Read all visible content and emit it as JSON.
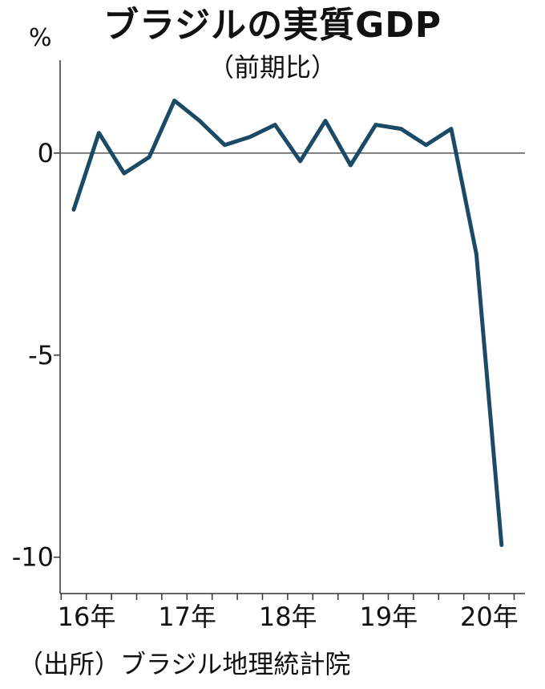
{
  "header": {
    "title": "ブラジルの実質GDP",
    "subtitle": "（前期比）",
    "unit": "%"
  },
  "footer": {
    "source": "（出所）ブラジル地理統計院"
  },
  "colors": {
    "line": "#1b4a66",
    "axis": "#333333",
    "zero_line": "#555555"
  },
  "chart_data": {
    "type": "line",
    "title": "ブラジルの実質GDP",
    "subtitle": "（前期比）",
    "ylabel": "%",
    "ylim": [
      -10.9,
      2.3
    ],
    "yticks": [
      0,
      -5,
      -10
    ],
    "ytick_labels": [
      "0",
      "-5",
      "-10"
    ],
    "xticks": [
      "16年",
      "17年",
      "18年",
      "19年",
      "20年"
    ],
    "x": [
      "2016Q1",
      "2016Q2",
      "2016Q3",
      "2016Q4",
      "2017Q1",
      "2017Q2",
      "2017Q3",
      "2017Q4",
      "2018Q1",
      "2018Q2",
      "2018Q3",
      "2018Q4",
      "2019Q1",
      "2019Q2",
      "2019Q3",
      "2019Q4",
      "2020Q1",
      "2020Q2"
    ],
    "series": [
      {
        "values": [
          -1.4,
          0.5,
          -0.5,
          -0.1,
          1.3,
          0.8,
          0.2,
          0.4,
          0.7,
          -0.2,
          0.8,
          -0.3,
          0.7,
          0.6,
          0.2,
          0.6,
          -2.5,
          -9.7
        ]
      }
    ],
    "grid": false,
    "legend": "none"
  }
}
